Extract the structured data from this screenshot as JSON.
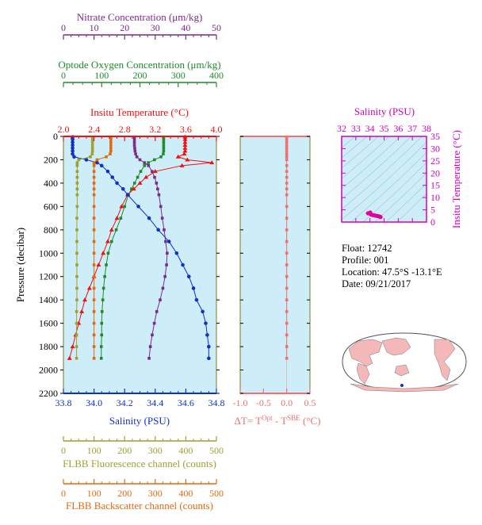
{
  "colors": {
    "plot_bg": "#cdeef8",
    "frame": "#7a7a20",
    "nitrate": "#7b2a8a",
    "oxygen": "#1e8c2a",
    "temperature": "#ee1111",
    "salinity": "#1030c8",
    "fluorescence": "#a0a030",
    "backscatter": "#e06a10",
    "delta_t": "#f07070",
    "ts_points": "#e000a0",
    "ts_axes": "#d000c0",
    "land": "#f4b8b8",
    "ocean": "#ffffff"
  },
  "info": {
    "float": "Float:  12742",
    "profile": "Profile:  001",
    "location": "Location:  47.5°S  -13.1°E",
    "date": "Date:  09/21/2017"
  },
  "chart_data": [
    {
      "type": "line",
      "title": "",
      "ylabel": "Pressure (decibar)",
      "ylim": [
        2200,
        0
      ],
      "yticks": [
        "0",
        "200",
        "400",
        "600",
        "800",
        "1000",
        "1200",
        "1400",
        "1600",
        "1800",
        "2000",
        "2200"
      ],
      "grid": false,
      "axes": [
        {
          "key": "nitrate",
          "label": "Nitrate Concentration (μm/kg)",
          "range": [
            0,
            50
          ],
          "ticks": [
            "0",
            "10",
            "20",
            "30",
            "40",
            "50"
          ]
        },
        {
          "key": "oxygen",
          "label": "Optode Oxygen Concentration (μm/kg)",
          "range": [
            0,
            400
          ],
          "ticks": [
            "0",
            "100",
            "200",
            "300",
            "400"
          ]
        },
        {
          "key": "temperature",
          "label": "Insitu Temperature (°C)",
          "range": [
            2.0,
            4.0
          ],
          "ticks": [
            "2.0",
            "2.4",
            "2.8",
            "3.2",
            "3.6",
            "4.0"
          ]
        },
        {
          "key": "salinity",
          "label": "Salinity (PSU)",
          "range": [
            33.8,
            34.8
          ],
          "ticks": [
            "33.8",
            "34.0",
            "34.2",
            "34.4",
            "34.6",
            "34.8"
          ]
        },
        {
          "key": "fluorescence",
          "label": "FLBB Fluorescence channel (counts)",
          "range": [
            0,
            500
          ],
          "ticks": [
            "0",
            "100",
            "200",
            "300",
            "400",
            "500"
          ]
        },
        {
          "key": "backscatter",
          "label": "FLBB Backscatter channel (counts)",
          "range": [
            0,
            500
          ],
          "ticks": [
            "0",
            "100",
            "200",
            "300",
            "400",
            "500"
          ]
        }
      ],
      "pressure": [
        5,
        25,
        50,
        75,
        100,
        125,
        150,
        175,
        200,
        225,
        250,
        300,
        350,
        400,
        450,
        500,
        600,
        700,
        800,
        900,
        1000,
        1100,
        1200,
        1300,
        1400,
        1500,
        1600,
        1700,
        1800,
        1900
      ],
      "series": [
        {
          "key": "nitrate",
          "marker": "square",
          "values": [
            23.2,
            23.2,
            23.2,
            23.2,
            23.3,
            23.4,
            23.6,
            24.0,
            25.0,
            26.5,
            27.8,
            29.0,
            29.8,
            30.4,
            30.8,
            31.2,
            31.8,
            32.3,
            32.9,
            33.4,
            33.9,
            33.7,
            33.2,
            32.5,
            31.6,
            30.5,
            29.7,
            29.0,
            28.4,
            28.0
          ]
        },
        {
          "key": "oxygen",
          "marker": "square",
          "values": [
            262,
            262,
            262,
            262,
            262,
            262,
            261,
            255,
            238,
            222,
            212,
            202,
            194,
            186,
            178,
            170,
            160,
            150,
            138,
            126,
            117,
            112,
            108,
            105,
            103,
            101,
            100,
            100,
            99,
            99
          ]
        },
        {
          "key": "temperature",
          "marker": "triangle",
          "values": [
            3.59,
            3.59,
            3.59,
            3.59,
            3.59,
            3.59,
            3.58,
            3.5,
            3.62,
            3.94,
            3.55,
            3.2,
            3.08,
            3.0,
            2.92,
            2.84,
            2.76,
            2.7,
            2.63,
            2.58,
            2.52,
            2.46,
            2.4,
            2.34,
            2.28,
            2.24,
            2.2,
            2.16,
            2.12,
            2.08
          ]
        },
        {
          "key": "salinity",
          "marker": "circle",
          "values": [
            33.86,
            33.86,
            33.86,
            33.86,
            33.86,
            33.86,
            33.86,
            33.87,
            33.95,
            34.02,
            34.05,
            34.09,
            34.12,
            34.15,
            34.19,
            34.22,
            34.29,
            34.36,
            34.42,
            34.49,
            34.54,
            34.58,
            34.62,
            34.65,
            34.67,
            34.71,
            34.73,
            34.74,
            34.75,
            34.75
          ]
        },
        {
          "key": "fluorescence",
          "marker": "square",
          "values": [
            95,
            95,
            95,
            95,
            95,
            95,
            94,
            88,
            50,
            45,
            45,
            45,
            45,
            45,
            45,
            45,
            45,
            44,
            44,
            44,
            44,
            44,
            44,
            44,
            44,
            43,
            43,
            43,
            43,
            43
          ]
        },
        {
          "key": "backscatter",
          "marker": "square",
          "values": [
            155,
            155,
            155,
            155,
            155,
            155,
            153,
            140,
            110,
            100,
            100,
            100,
            100,
            100,
            100,
            100,
            100,
            100,
            100,
            100,
            100,
            100,
            100,
            100,
            100,
            100,
            100,
            100,
            100,
            100
          ]
        }
      ]
    },
    {
      "type": "line",
      "title": "",
      "xlabel": "ΔT= T",
      "xlabel_sup1": "Opt",
      "xlabel_mid": " - T",
      "xlabel_sup2": "SBE",
      "xlabel_end": " (°C)",
      "xlim": [
        -1.0,
        0.5
      ],
      "xticks": [
        "-1.0",
        "-0.5",
        "0.0",
        "0.5"
      ],
      "ylim": [
        2200,
        0
      ],
      "pressure": [
        5,
        25,
        50,
        75,
        100,
        125,
        150,
        175,
        200,
        250,
        300,
        350,
        400,
        450,
        500,
        600,
        700,
        800,
        900,
        1000,
        1100,
        1200,
        1300,
        1400,
        1500,
        1600,
        1700,
        1800,
        1900
      ],
      "values": [
        0.0,
        0.0,
        0.0,
        0.0,
        0.0,
        0.0,
        0.0,
        0.0,
        0.0,
        0.0,
        0.0,
        0.0,
        0.0,
        0.0,
        0.0,
        0.0,
        0.0,
        0.0,
        0.0,
        0.0,
        0.0,
        0.0,
        0.0,
        0.0,
        0.0,
        0.0,
        0.0,
        0.0,
        0.0
      ]
    },
    {
      "type": "scatter",
      "title": "",
      "xlabel": "Salinity (PSU)",
      "ylabel": "Insitu Temperature (°C)",
      "xlim": [
        32,
        38
      ],
      "ylim": [
        0,
        35
      ],
      "xticks": [
        "32",
        "33",
        "34",
        "35",
        "36",
        "37",
        "38"
      ],
      "yticks": [
        "0",
        "5",
        "10",
        "15",
        "20",
        "25",
        "30",
        "35"
      ],
      "points": [
        [
          33.86,
          3.59
        ],
        [
          33.95,
          3.55
        ],
        [
          34.02,
          3.9
        ],
        [
          34.05,
          3.2
        ],
        [
          34.12,
          3.0
        ],
        [
          34.2,
          2.85
        ],
        [
          34.3,
          2.75
        ],
        [
          34.4,
          2.6
        ],
        [
          34.5,
          2.5
        ],
        [
          34.6,
          2.38
        ],
        [
          34.68,
          2.25
        ],
        [
          34.74,
          2.1
        ],
        [
          34.75,
          2.05
        ]
      ]
    }
  ]
}
